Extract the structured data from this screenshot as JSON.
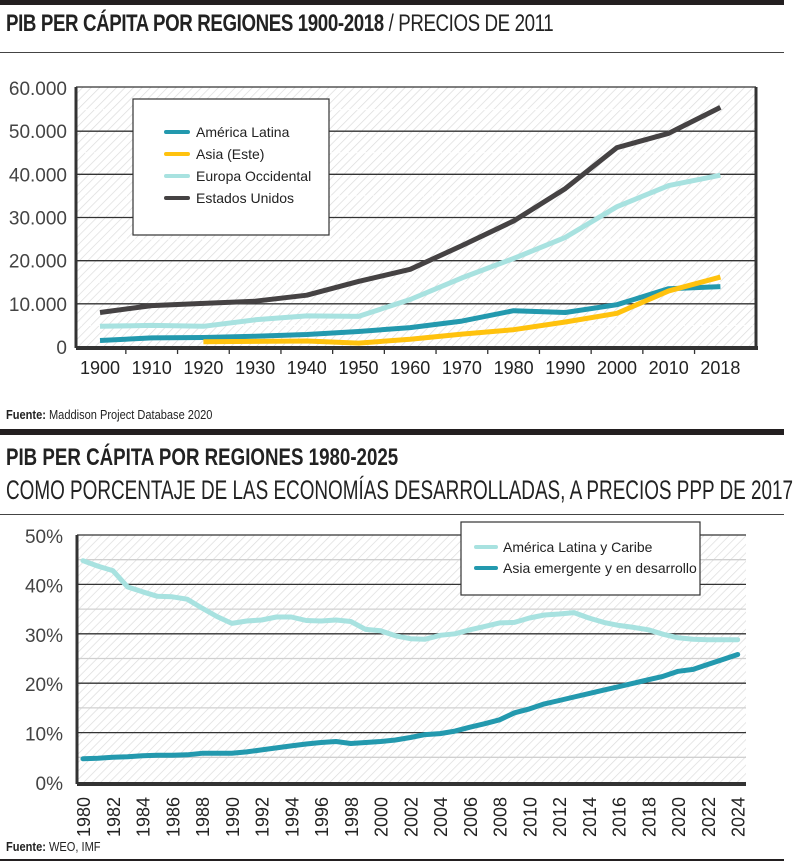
{
  "chart_data": [
    {
      "type": "line",
      "title": "PIB PER CÁPITA POR REGIONES 1900-2018",
      "subtitle": "PRECIOS DE 2011",
      "xlabel": "",
      "ylabel": "",
      "x": [
        "1900",
        "1910",
        "1920",
        "1930",
        "1940",
        "1950",
        "1960",
        "1970",
        "1980",
        "1990",
        "2000",
        "2010",
        "2018"
      ],
      "ylim": [
        0,
        60000
      ],
      "yticks": [
        0,
        10000,
        20000,
        30000,
        40000,
        50000,
        60000
      ],
      "ytick_labels": [
        "0",
        "10.000",
        "20.000",
        "30.000",
        "40.000",
        "50.000",
        "60.000"
      ],
      "grid": true,
      "legend_position": "top-left",
      "series": [
        {
          "name": "América Latina",
          "color": "#2399ae",
          "values": [
            1500,
            2100,
            2200,
            2500,
            2900,
            3600,
            4500,
            6000,
            8400,
            8000,
            9800,
            13500,
            14000
          ]
        },
        {
          "name": "Asia (Este)",
          "color": "#ffc20e",
          "values": [
            null,
            null,
            1200,
            1300,
            1400,
            900,
            1800,
            3000,
            4000,
            5800,
            7800,
            13000,
            16200
          ]
        },
        {
          "name": "Europa Occidental",
          "color": "#a8e2e0",
          "values": [
            4800,
            5000,
            4800,
            6300,
            7200,
            7100,
            11000,
            16000,
            20500,
            25400,
            32500,
            37400,
            39800
          ]
        },
        {
          "name": "Estados Unidos",
          "color": "#454243",
          "values": [
            8000,
            9600,
            10100,
            10600,
            12000,
            15200,
            18000,
            23500,
            29200,
            36700,
            46200,
            49500,
            55500
          ]
        }
      ]
    },
    {
      "type": "line",
      "title": "PIB PER CÁPITA POR REGIONES 1980-2025",
      "subtitle": "COMO PORCENTAJE DE LAS ECONOMÍAS DESARROLLADAS, A PRECIOS PPP DE 2017",
      "xlabel": "",
      "ylabel": "",
      "x": [
        1980,
        1981,
        1982,
        1983,
        1984,
        1985,
        1986,
        1987,
        1988,
        1989,
        1990,
        1991,
        1992,
        1993,
        1994,
        1995,
        1996,
        1997,
        1998,
        1999,
        2000,
        2001,
        2002,
        2003,
        2004,
        2005,
        2006,
        2007,
        2008,
        2009,
        2010,
        2011,
        2012,
        2013,
        2014,
        2015,
        2016,
        2017,
        2018,
        2019,
        2020,
        2021,
        2022,
        2023,
        2024
      ],
      "xtick_labels": [
        "1980",
        "1982",
        "1984",
        "1986",
        "1988",
        "1990",
        "1992",
        "1994",
        "1996",
        "1998",
        "2000",
        "2002",
        "2004",
        "2006",
        "2008",
        "2010",
        "2012",
        "2014",
        "2016",
        "2018",
        "2020",
        "2022",
        "2024"
      ],
      "ylim": [
        0,
        50
      ],
      "yticks": [
        0,
        10,
        20,
        30,
        40,
        50
      ],
      "ytick_labels": [
        "0%",
        "10%",
        "20%",
        "30%",
        "40%",
        "50%"
      ],
      "grid": true,
      "legend_position": "top-right",
      "series": [
        {
          "name": "América Latina y Caribe",
          "color": "#a8e2e0",
          "values": [
            44.8,
            43.7,
            42.8,
            39.5,
            38.5,
            37.6,
            37.5,
            37.0,
            35.2,
            33.5,
            32.1,
            32.6,
            32.8,
            33.4,
            33.4,
            32.7,
            32.6,
            32.8,
            32.5,
            30.9,
            30.6,
            29.6,
            29.0,
            28.9,
            29.7,
            30.0,
            30.8,
            31.5,
            32.2,
            32.3,
            33.2,
            33.8,
            34.0,
            34.3,
            33.2,
            32.3,
            31.7,
            31.3,
            30.8,
            29.9,
            29.2,
            28.9,
            28.8,
            28.8,
            28.8
          ]
        },
        {
          "name": "Asia emergente y en desarrollo",
          "color": "#2399ae",
          "values": [
            4.7,
            4.8,
            5.0,
            5.1,
            5.3,
            5.4,
            5.4,
            5.5,
            5.8,
            5.8,
            5.8,
            6.1,
            6.5,
            6.9,
            7.3,
            7.7,
            8.0,
            8.2,
            7.8,
            8.0,
            8.2,
            8.5,
            9.0,
            9.6,
            9.8,
            10.3,
            11.1,
            11.8,
            12.6,
            14.0,
            14.8,
            15.8,
            16.5,
            17.2,
            17.9,
            18.6,
            19.3,
            20.0,
            20.7,
            21.4,
            22.4,
            22.8,
            23.8,
            24.8,
            25.8
          ]
        }
      ]
    }
  ],
  "header1": {
    "title_bold": "PIB PER CÁPITA POR REGIONES 1900-2018",
    "separator": " / ",
    "title_light": "PRECIOS DE 2011"
  },
  "source1": {
    "label": "Fuente:",
    "text": " Maddison Project Database 2020"
  },
  "header2": {
    "title_bold": "PIB PER CÁPITA POR REGIONES 1980-2025",
    "subtitle": "COMO PORCENTAJE DE LAS ECONOMÍAS DESARROLLADAS, A PRECIOS PPP DE 2017"
  },
  "source2": {
    "label": "Fuente:",
    "text": " WEO, IMF"
  }
}
